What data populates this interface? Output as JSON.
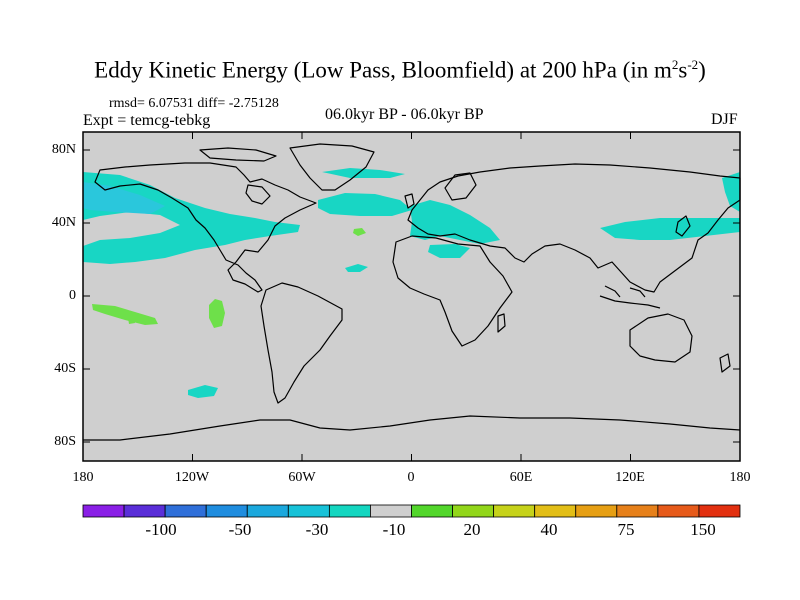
{
  "title": {
    "text": "Eddy Kinetic Energy (Low Pass, Bloomfield) at 200 hPa (in m",
    "sup1": "2",
    "mid": "s",
    "sup2": "-2",
    "end": ")"
  },
  "stats": "rmsd= 6.07531 diff= -2.75128",
  "expt": "Expt = temcg-tebkg",
  "center_label": "06.0kyr BP - 06.0kyr BP",
  "season": "DJF",
  "lat_labels": [
    "80N",
    "40N",
    "0",
    "40S",
    "80S"
  ],
  "lon_labels": [
    "180",
    "120W",
    "60W",
    "0",
    "60E",
    "120E",
    "180"
  ],
  "colorbar": {
    "colors": [
      "#8a1fe6",
      "#5a2ed8",
      "#2f6fd9",
      "#1f8ddf",
      "#1ba8dd",
      "#17c2d8",
      "#14d6c0",
      "#cfcfcf",
      "#52d62b",
      "#92d61a",
      "#c6d21a",
      "#e2be17",
      "#e69f14",
      "#e6801a",
      "#e65a1a",
      "#e23010"
    ],
    "labels": [
      "-100",
      "-50",
      "-30",
      "-10",
      "20",
      "40",
      "75",
      "150"
    ]
  },
  "map": {
    "ocean_fill": "#cfcfcf",
    "positive_fill": "#6ee04a",
    "negative_fill": "#18d6c4",
    "negative_strong_fill": "#2ac7dc"
  },
  "chart_data": {
    "type": "heatmap",
    "title": "Eddy Kinetic Energy (Low Pass, Bloomfield) at 200 hPa (in m2s-2)",
    "projection": "cylindrical equidistant",
    "x_range": [
      -180,
      180
    ],
    "y_range": [
      -90,
      90
    ],
    "contour_levels": [
      -100,
      -50,
      -30,
      -10,
      20,
      40,
      75,
      150
    ],
    "features": [
      {
        "region": "North Pacific to North America",
        "lon": [
          -180,
          -60
        ],
        "lat": [
          20,
          70
        ],
        "class": "-30 to -10"
      },
      {
        "region": "North Atlantic",
        "lon": [
          -30,
          0
        ],
        "lat": [
          45,
          55
        ],
        "class": "-10 to 20 (negative)"
      },
      {
        "region": "Mediterranean / North Africa",
        "lon": [
          0,
          50
        ],
        "lat": [
          25,
          45
        ],
        "class": "-10 to 20 (negative)"
      },
      {
        "region": "East Asia / West Pacific",
        "lon": [
          100,
          180
        ],
        "lat": [
          30,
          45
        ],
        "class": "-10 to 20 (negative)"
      },
      {
        "region": "South Pacific",
        "lon": [
          -170,
          -130
        ],
        "lat": [
          -15,
          0
        ],
        "class": "20 to 40"
      },
      {
        "region": "East Pacific",
        "lon": [
          -120,
          -110
        ],
        "lat": [
          -20,
          0
        ],
        "class": "20 to 40"
      },
      {
        "region": "South Pacific mid-latitude",
        "lon": [
          -130,
          -115
        ],
        "lat": [
          -52,
          -45
        ],
        "class": "-10 to 20 (negative)"
      }
    ]
  }
}
